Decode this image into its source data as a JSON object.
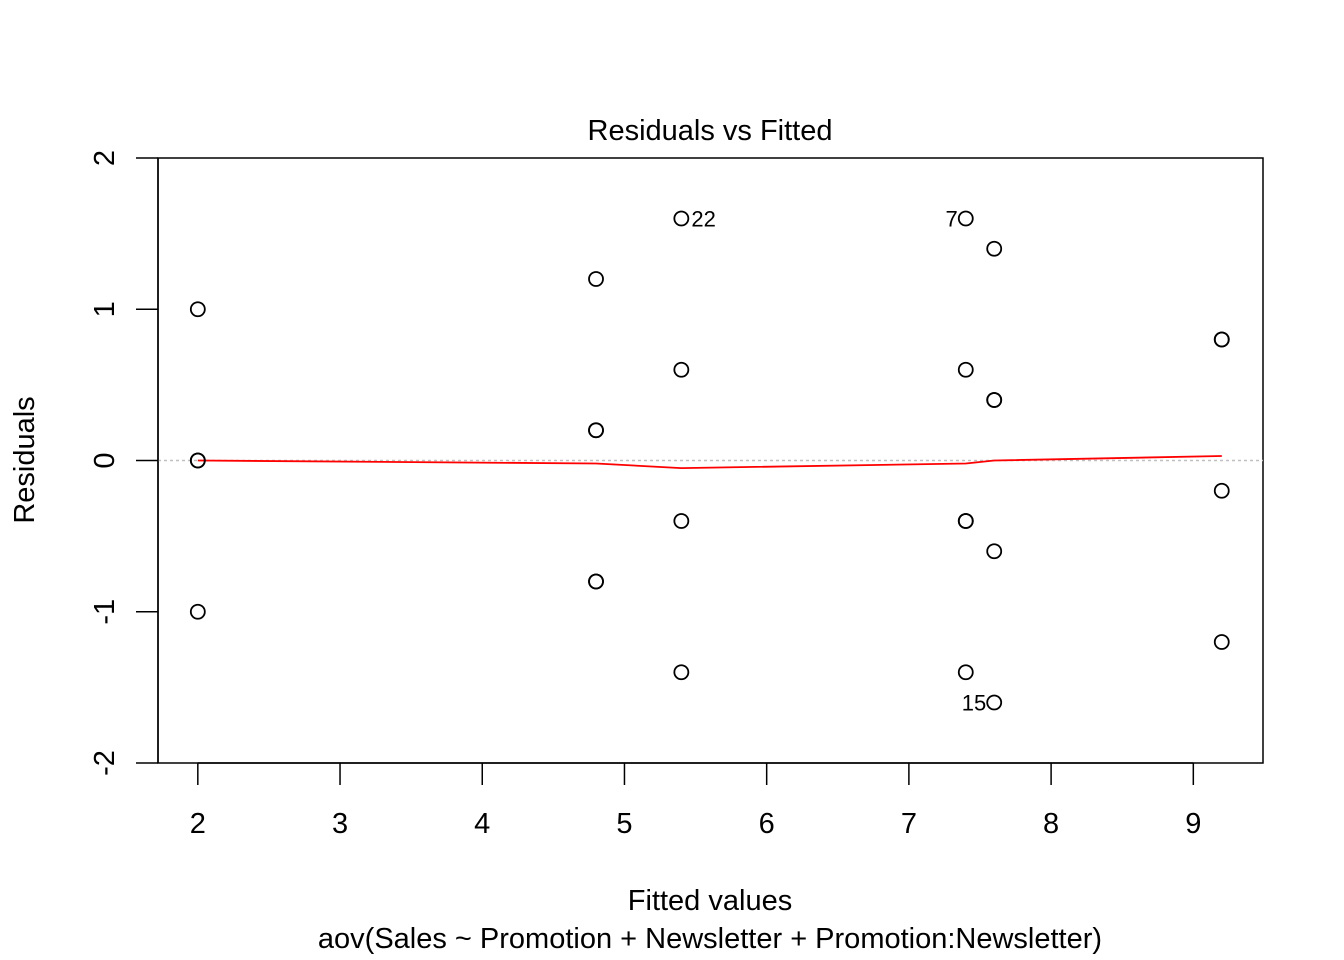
{
  "chart_data": {
    "type": "scatter",
    "title": "Residuals vs Fitted",
    "xlabel": "Fitted values",
    "subtitle": "aov(Sales ~ Promotion + Newsletter + Promotion:Newsletter)",
    "ylabel": "Residuals",
    "xlim": [
      1.72,
      9.49
    ],
    "ylim": [
      -2,
      2
    ],
    "x_ticks": [
      2,
      3,
      4,
      5,
      6,
      7,
      8,
      9
    ],
    "x_tick_labels": [
      "2",
      "3",
      "4",
      "5",
      "6",
      "7",
      "8",
      "9"
    ],
    "y_ticks": [
      -2,
      -1,
      0,
      1,
      2
    ],
    "y_tick_labels": [
      "-2",
      "-1",
      "0",
      "1",
      "2"
    ],
    "reference_line": {
      "y": 0,
      "color": "#c0c0c0",
      "style": "dotted"
    },
    "points": [
      {
        "x": 2.0,
        "y": 1.0
      },
      {
        "x": 2.0,
        "y": 0.0
      },
      {
        "x": 2.0,
        "y": 0.0
      },
      {
        "x": 2.0,
        "y": -1.0
      },
      {
        "x": 4.8,
        "y": 1.2
      },
      {
        "x": 4.8,
        "y": 0.2
      },
      {
        "x": 4.8,
        "y": 0.2
      },
      {
        "x": 4.8,
        "y": -0.8
      },
      {
        "x": 4.8,
        "y": -0.8
      },
      {
        "x": 5.4,
        "y": 1.6,
        "label": "22",
        "label_side": "right"
      },
      {
        "x": 5.4,
        "y": 0.6
      },
      {
        "x": 5.4,
        "y": -0.4
      },
      {
        "x": 5.4,
        "y": -1.4
      },
      {
        "x": 7.4,
        "y": 1.6,
        "label": "7",
        "label_side": "left"
      },
      {
        "x": 7.4,
        "y": 0.6
      },
      {
        "x": 7.4,
        "y": -0.4
      },
      {
        "x": 7.4,
        "y": -0.4
      },
      {
        "x": 7.4,
        "y": -1.4
      },
      {
        "x": 7.6,
        "y": 1.4
      },
      {
        "x": 7.6,
        "y": 0.4
      },
      {
        "x": 7.6,
        "y": 0.4
      },
      {
        "x": 7.6,
        "y": -0.6
      },
      {
        "x": 7.6,
        "y": -1.6,
        "label": "15",
        "label_side": "left"
      },
      {
        "x": 9.2,
        "y": 0.8
      },
      {
        "x": 9.2,
        "y": 0.8
      },
      {
        "x": 9.2,
        "y": -0.2
      },
      {
        "x": 9.2,
        "y": -1.2
      }
    ],
    "smooth_line": {
      "color": "#ff0000",
      "x": [
        2.0,
        4.8,
        5.4,
        7.4,
        7.6,
        9.2
      ],
      "y": [
        0.0,
        -0.02,
        -0.05,
        -0.02,
        0.0,
        0.03
      ]
    }
  }
}
